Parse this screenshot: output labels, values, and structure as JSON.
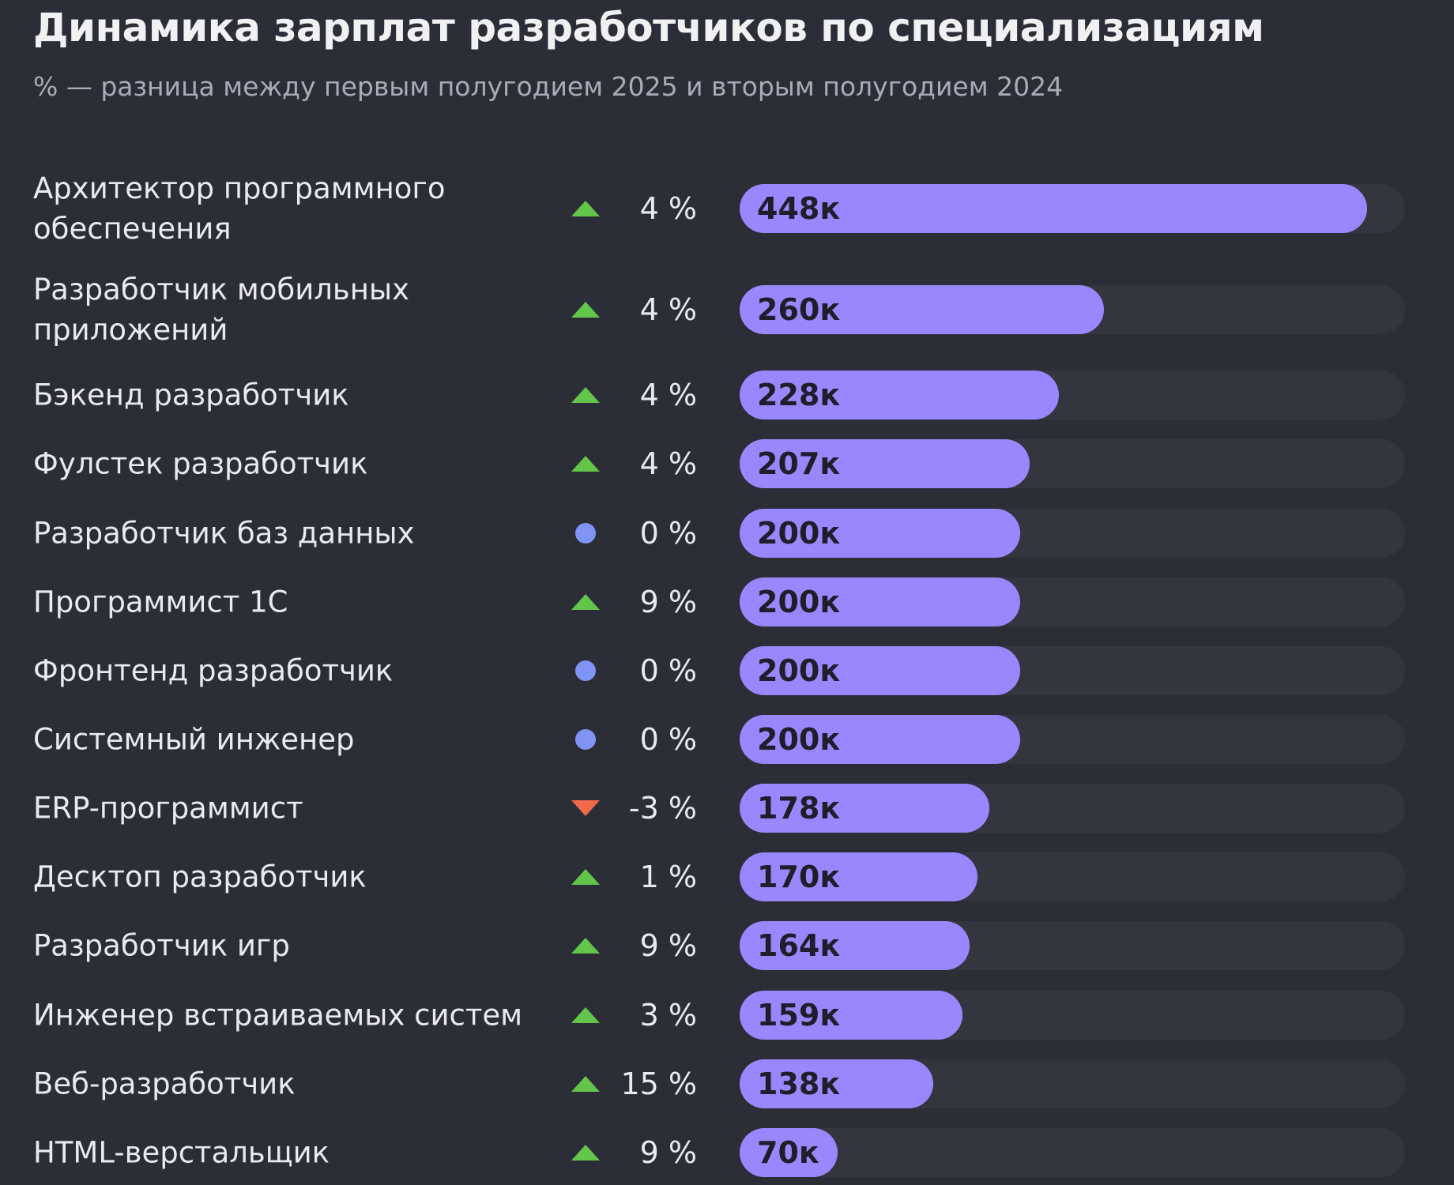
{
  "chart_data": {
    "type": "bar",
    "orientation": "horizontal",
    "title": "Динамика зарплат разработчиков по специализациям",
    "subtitle": "% — разница между первым полугодием 2025 и вторым полугодием 2024",
    "categories": [
      "Архитектор программного обеспечения",
      "Разработчик мобильных приложений",
      "Бэкенд разработчик",
      "Фулстек разработчик",
      "Разработчик баз данных",
      "Программист 1С",
      "Фронтенд разработчик",
      "Системный инженер",
      "ERP-программист",
      "Десктоп разработчик",
      "Разработчик игр",
      "Инженер встраиваемых систем",
      "Веб-разработчик",
      "HTML-верстальщик"
    ],
    "values": [
      448,
      260,
      228,
      207,
      200,
      200,
      200,
      200,
      178,
      170,
      164,
      159,
      138,
      70
    ],
    "value_labels": [
      "448к",
      "260к",
      "228к",
      "207к",
      "200к",
      "200к",
      "200к",
      "200к",
      "178к",
      "170к",
      "164к",
      "159к",
      "138к",
      "70к"
    ],
    "change_pct": [
      4,
      4,
      4,
      4,
      0,
      9,
      0,
      0,
      -3,
      1,
      9,
      3,
      15,
      9
    ],
    "change_labels": [
      "4 %",
      "4 %",
      "4 %",
      "4 %",
      "0 %",
      "9 %",
      "0 %",
      "0 %",
      "-3 %",
      "1 %",
      "9 %",
      "3 %",
      "15 %",
      "9 %"
    ],
    "xlim": [
      0,
      475
    ],
    "grid": false,
    "legend": "none",
    "colors": {
      "background": "#2b2e37",
      "track": "#33363f",
      "bar": "#9b87fd",
      "bar_text": "#1e1f2b",
      "up": "#63c54a",
      "down": "#ef6a4a",
      "flat": "#7f94f4"
    }
  }
}
